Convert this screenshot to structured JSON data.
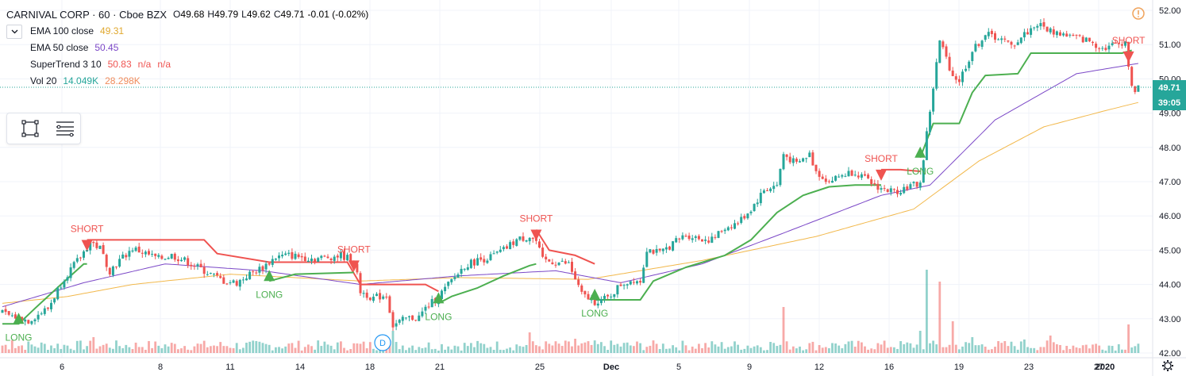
{
  "header": {
    "symbol_line": "CARNIVAL CORP · 60 · Cboe BZX",
    "ohlc": [
      {
        "key": "O",
        "value": "49.68"
      },
      {
        "key": "H",
        "value": "49.79"
      },
      {
        "key": "L",
        "value": "49.62"
      },
      {
        "key": "C",
        "value": "49.71"
      },
      {
        "key": "",
        "value": "-0.01 (-0.02%)"
      }
    ]
  },
  "indicators": [
    {
      "name": "EMA 100 close",
      "value": "49.31",
      "color": "#e0a82e"
    },
    {
      "name": "EMA 50 close",
      "value": "50.45",
      "color": "#7b48c7"
    },
    {
      "name": "SuperTrend 3 10",
      "value": "50.83",
      "extra1": "n/a",
      "extra2": "n/a",
      "color": "#ef5350"
    },
    {
      "name": "Vol 20",
      "value": "14.049K",
      "value2": "28.298K",
      "color": "#26a69a"
    }
  ],
  "price_tags": {
    "last_price": "49.71",
    "countdown": "39:05"
  },
  "icons": {
    "alert": "alert-circle-icon",
    "settings": "gear-icon",
    "rectangle_tool": "rectangle-tool-icon",
    "lines_tool": "lines-tool-icon",
    "dividend": "D"
  },
  "chart_data": {
    "type": "candlestick",
    "title": "CARNIVAL CORP · 60 · Cboe BZX",
    "x_ticks": [
      "6",
      "8",
      "11",
      "14",
      "18",
      "21",
      "25",
      "Dec",
      "5",
      "9",
      "12",
      "16",
      "19",
      "23",
      "27",
      "2020"
    ],
    "y_ticks": [
      "52.00",
      "51.00",
      "50.00",
      "49.00",
      "48.00",
      "47.00",
      "46.00",
      "45.00",
      "44.00",
      "43.00",
      "42.00"
    ],
    "ylim": [
      42,
      52.2
    ],
    "price_anchors": [
      [
        0,
        43.15
      ],
      [
        8,
        42.95
      ],
      [
        14,
        43.3
      ],
      [
        19,
        44.2
      ],
      [
        24,
        44.8
      ],
      [
        27,
        45.25
      ],
      [
        30,
        45.05
      ],
      [
        33,
        44.4
      ],
      [
        36,
        44.7
      ],
      [
        40,
        45.05
      ],
      [
        44,
        44.9
      ],
      [
        48,
        44.75
      ],
      [
        52,
        44.85
      ],
      [
        56,
        44.7
      ],
      [
        60,
        44.5
      ],
      [
        64,
        44.3
      ],
      [
        68,
        44.1
      ],
      [
        72,
        44.05
      ],
      [
        76,
        44.3
      ],
      [
        80,
        44.5
      ],
      [
        84,
        44.8
      ],
      [
        88,
        44.85
      ],
      [
        92,
        44.8
      ],
      [
        96,
        44.75
      ],
      [
        100,
        44.8
      ],
      [
        104,
        44.85
      ],
      [
        108,
        44.7
      ],
      [
        110,
        43.8
      ],
      [
        114,
        43.6
      ],
      [
        118,
        43.7
      ],
      [
        120,
        42.8
      ],
      [
        124,
        43.0
      ],
      [
        128,
        43.05
      ],
      [
        130,
        43.3
      ],
      [
        134,
        43.65
      ],
      [
        138,
        44.1
      ],
      [
        142,
        44.55
      ],
      [
        146,
        44.7
      ],
      [
        150,
        44.8
      ],
      [
        154,
        45.0
      ],
      [
        158,
        45.3
      ],
      [
        162,
        45.4
      ],
      [
        164,
        45.25
      ],
      [
        166,
        44.7
      ],
      [
        170,
        44.65
      ],
      [
        174,
        44.6
      ],
      [
        178,
        43.7
      ],
      [
        182,
        43.5
      ],
      [
        186,
        43.6
      ],
      [
        190,
        44.0
      ],
      [
        194,
        44.15
      ],
      [
        196,
        44.1
      ],
      [
        198,
        45.05
      ],
      [
        202,
        44.9
      ],
      [
        206,
        45.2
      ],
      [
        210,
        45.45
      ],
      [
        214,
        45.35
      ],
      [
        218,
        45.3
      ],
      [
        222,
        45.65
      ],
      [
        226,
        45.8
      ],
      [
        230,
        46.2
      ],
      [
        234,
        46.75
      ],
      [
        238,
        46.9
      ],
      [
        240,
        47.8
      ],
      [
        244,
        47.5
      ],
      [
        248,
        47.8
      ],
      [
        250,
        47.3
      ],
      [
        254,
        47.0
      ],
      [
        258,
        47.2
      ],
      [
        262,
        47.3
      ],
      [
        266,
        47.0
      ],
      [
        270,
        46.8
      ],
      [
        274,
        46.7
      ],
      [
        278,
        46.85
      ],
      [
        282,
        46.95
      ],
      [
        284,
        48.4
      ],
      [
        288,
        51.1
      ],
      [
        292,
        50.1
      ],
      [
        294,
        49.95
      ],
      [
        298,
        50.8
      ],
      [
        302,
        51.3
      ],
      [
        306,
        51.2
      ],
      [
        310,
        50.95
      ],
      [
        314,
        51.3
      ],
      [
        318,
        51.6
      ],
      [
        322,
        51.4
      ],
      [
        326,
        51.3
      ],
      [
        330,
        51.2
      ],
      [
        334,
        51.1
      ],
      [
        338,
        50.9
      ],
      [
        342,
        51.0
      ],
      [
        345,
        51.1
      ],
      [
        347,
        49.7
      ],
      [
        349,
        49.71
      ]
    ],
    "supertrend_segments": [
      {
        "dir": "up",
        "pts": [
          [
            0,
            42.85
          ],
          [
            5,
            42.85
          ],
          [
            10,
            43.3
          ],
          [
            18,
            44.0
          ],
          [
            25,
            44.6
          ],
          [
            26,
            44.6
          ]
        ]
      },
      {
        "dir": "down",
        "pts": [
          [
            26,
            45.3
          ],
          [
            62,
            45.3
          ],
          [
            66,
            44.9
          ],
          [
            82,
            44.65
          ],
          [
            106,
            44.65
          ],
          [
            110,
            44.0
          ],
          [
            130,
            44.0
          ],
          [
            134,
            43.8
          ]
        ]
      },
      {
        "dir": "up",
        "pts": [
          [
            82,
            44.1
          ],
          [
            90,
            44.3
          ],
          [
            108,
            44.35
          ]
        ]
      },
      {
        "dir": "up",
        "pts": [
          [
            134,
            43.45
          ],
          [
            138,
            43.65
          ],
          [
            146,
            43.9
          ],
          [
            154,
            44.25
          ],
          [
            162,
            44.55
          ],
          [
            164,
            44.6
          ]
        ]
      },
      {
        "dir": "down",
        "pts": [
          [
            164,
            45.6
          ],
          [
            168,
            45.0
          ],
          [
            176,
            44.85
          ],
          [
            182,
            44.6
          ]
        ]
      },
      {
        "dir": "up",
        "pts": [
          [
            182,
            43.55
          ],
          [
            196,
            43.55
          ],
          [
            200,
            44.1
          ],
          [
            210,
            44.5
          ],
          [
            222,
            44.85
          ],
          [
            230,
            45.3
          ],
          [
            238,
            46.1
          ],
          [
            246,
            46.6
          ],
          [
            254,
            46.85
          ],
          [
            262,
            46.9
          ],
          [
            270,
            46.9
          ]
        ]
      },
      {
        "dir": "down",
        "pts": [
          [
            270,
            47.35
          ],
          [
            276,
            47.35
          ],
          [
            282,
            47.3
          ]
        ]
      },
      {
        "dir": "up",
        "pts": [
          [
            282,
            47.7
          ],
          [
            286,
            48.7
          ],
          [
            294,
            48.7
          ],
          [
            298,
            49.6
          ],
          [
            302,
            50.1
          ],
          [
            312,
            50.15
          ],
          [
            316,
            50.75
          ],
          [
            344,
            50.75
          ],
          [
            347,
            50.83
          ]
        ]
      }
    ],
    "ema100_anchors": [
      [
        0,
        43.45
      ],
      [
        20,
        43.65
      ],
      [
        40,
        44.0
      ],
      [
        70,
        44.3
      ],
      [
        110,
        44.1
      ],
      [
        140,
        44.2
      ],
      [
        180,
        44.15
      ],
      [
        215,
        44.7
      ],
      [
        250,
        45.4
      ],
      [
        280,
        46.2
      ],
      [
        300,
        47.6
      ],
      [
        320,
        48.6
      ],
      [
        340,
        49.1
      ],
      [
        349,
        49.31
      ]
    ],
    "ema50_anchors": [
      [
        0,
        43.35
      ],
      [
        25,
        44.05
      ],
      [
        50,
        44.6
      ],
      [
        80,
        44.4
      ],
      [
        110,
        44.0
      ],
      [
        140,
        44.25
      ],
      [
        170,
        44.4
      ],
      [
        190,
        44.05
      ],
      [
        215,
        44.6
      ],
      [
        240,
        45.5
      ],
      [
        270,
        46.6
      ],
      [
        285,
        46.9
      ],
      [
        305,
        48.8
      ],
      [
        330,
        50.15
      ],
      [
        349,
        50.45
      ]
    ],
    "signals": [
      {
        "type": "LONG",
        "bar": 5,
        "price": 42.85
      },
      {
        "type": "SHORT",
        "bar": 26,
        "price": 45.3
      },
      {
        "type": "LONG",
        "bar": 82,
        "price": 44.1
      },
      {
        "type": "SHORT",
        "bar": 108,
        "price": 44.7
      },
      {
        "type": "LONG",
        "bar": 134,
        "price": 43.45
      },
      {
        "type": "SHORT",
        "bar": 164,
        "price": 45.6
      },
      {
        "type": "LONG",
        "bar": 182,
        "price": 43.55
      },
      {
        "type": "SHORT",
        "bar": 270,
        "price": 47.35
      },
      {
        "type": "LONG",
        "bar": 282,
        "price": 47.7
      },
      {
        "type": "SHORT",
        "bar": 346,
        "price": 50.8
      }
    ],
    "volume": {
      "label": "Vol 20",
      "last": "14.049K",
      "average": "28.298K",
      "spikes": [
        [
          3,
          16
        ],
        [
          28,
          20
        ],
        [
          120,
          28
        ],
        [
          162,
          26
        ],
        [
          176,
          18
        ],
        [
          236,
          14
        ],
        [
          240,
          58
        ],
        [
          256,
          12
        ],
        [
          282,
          28
        ],
        [
          284,
          105
        ],
        [
          288,
          90
        ],
        [
          292,
          40
        ],
        [
          298,
          20
        ],
        [
          314,
          17
        ],
        [
          322,
          22
        ],
        [
          346,
          36
        ]
      ]
    }
  }
}
